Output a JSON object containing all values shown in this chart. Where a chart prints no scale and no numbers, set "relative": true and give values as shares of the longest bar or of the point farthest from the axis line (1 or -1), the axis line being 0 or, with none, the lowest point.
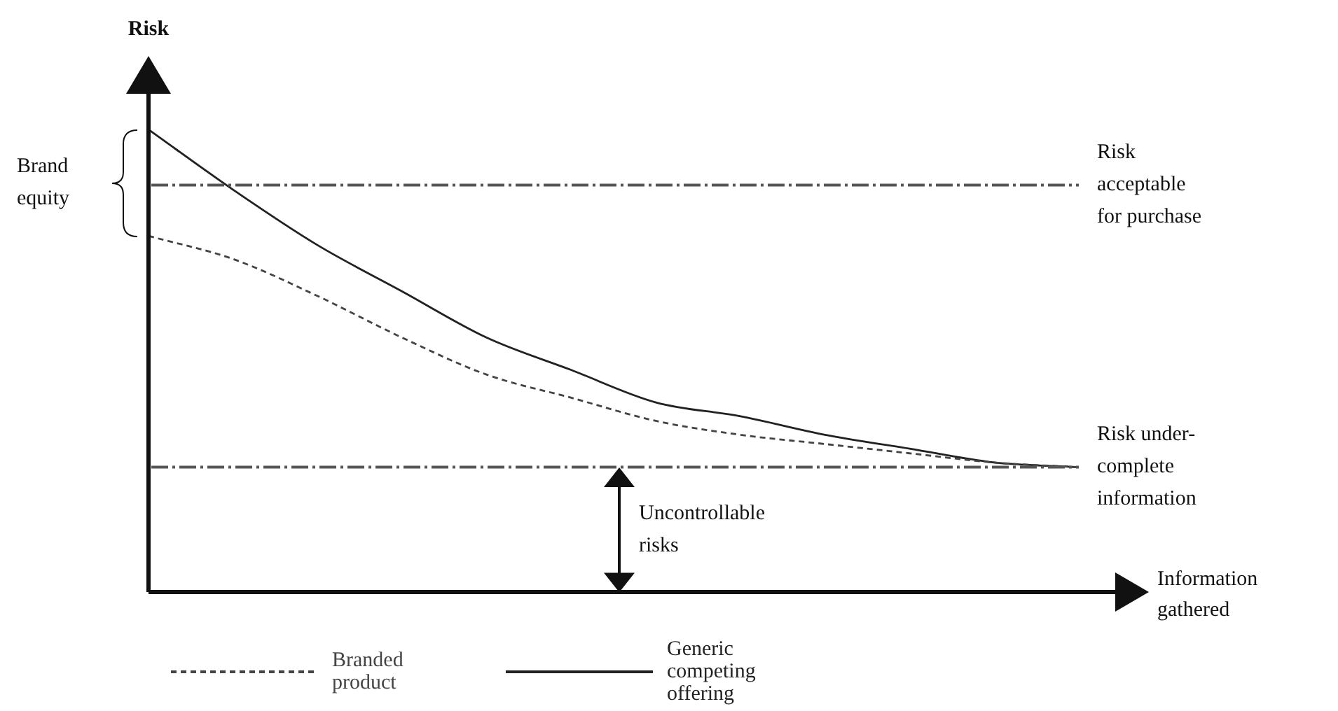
{
  "chart_data": {
    "type": "line",
    "relative": true,
    "ylabel": "Risk",
    "xlabel": "Information gathered",
    "categories": [
      null,
      null,
      null,
      null,
      null,
      null,
      null,
      null,
      null,
      null,
      null,
      null
    ],
    "series": [
      {
        "name": "Branded product",
        "color": "#444444",
        "line_style": "dashed",
        "values": [
          0.77,
          0.72,
          0.64,
          0.55,
          0.47,
          0.42,
          0.37,
          0.34,
          0.32,
          0.3,
          0.28,
          0.27
        ]
      },
      {
        "name": "Generic competing offering",
        "color": "#222222",
        "line_style": "solid",
        "values": [
          1.0,
          0.87,
          0.75,
          0.65,
          0.55,
          0.48,
          0.41,
          0.38,
          0.34,
          0.31,
          0.28,
          0.27
        ]
      }
    ],
    "ref_lines": [
      {
        "axis": "y",
        "value": 0.88,
        "label": "Risk acceptable for purchase",
        "color": "#555555",
        "line_style": "dashed"
      },
      {
        "axis": "y",
        "value": 0.27,
        "label": "Risk under-complete information",
        "color": "#555555",
        "line_style": "dashed"
      }
    ],
    "annotations": [
      "Brand equity",
      "Uncontrollable risks"
    ],
    "legend": "bottom"
  }
}
